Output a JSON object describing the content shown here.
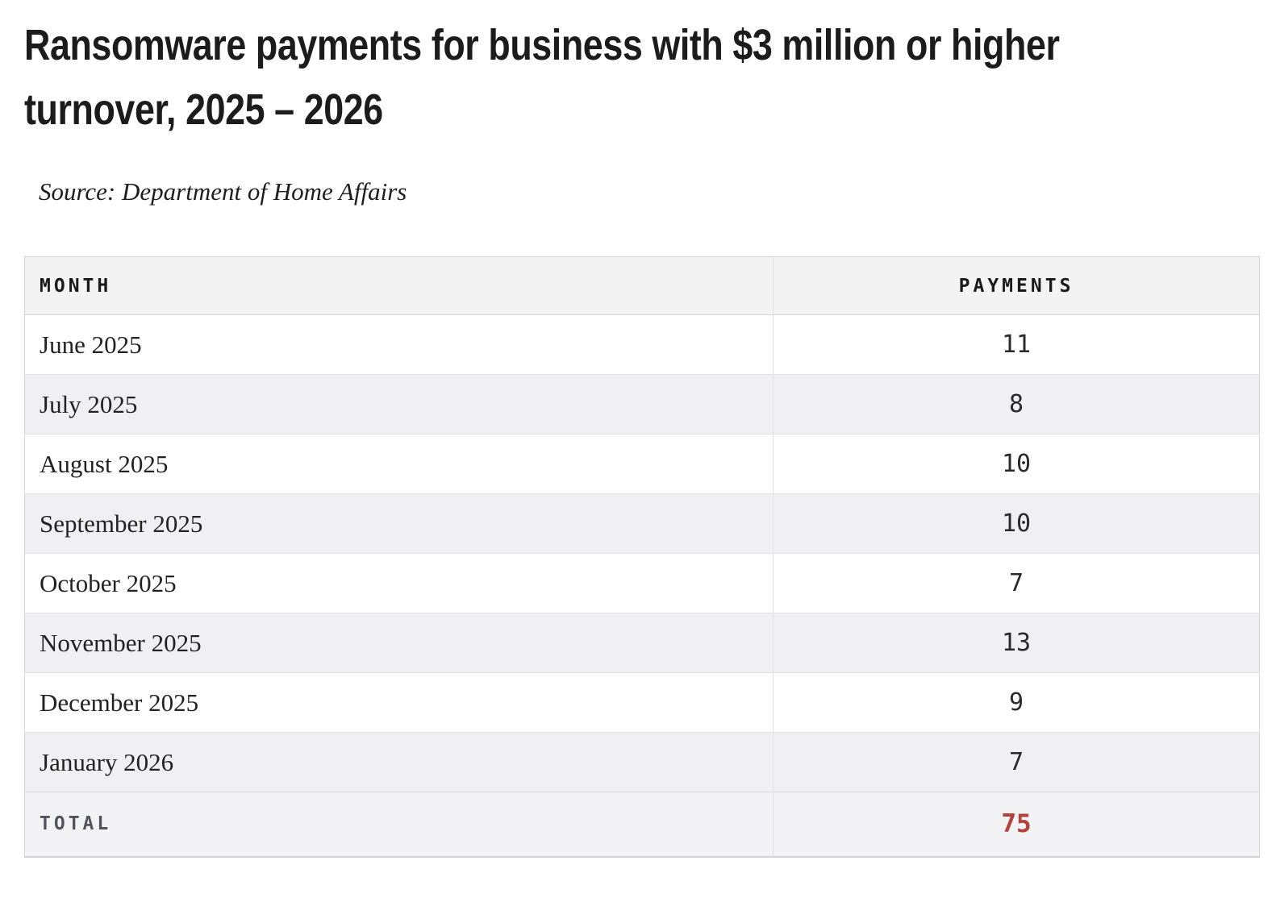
{
  "header": {
    "title": "Ransomware payments for business with $3 million or higher turnover, 2025 – 2026",
    "title_line1": "Ransomware payments for business with $3 million or higher",
    "title_line2": "turnover, 2025 – 2026",
    "source": "Source: Department of Home Affairs"
  },
  "table": {
    "columns": [
      {
        "label": "MONTH"
      },
      {
        "label": "PAYMENTS"
      }
    ],
    "rows": [
      {
        "month": "June 2025",
        "payments": "11"
      },
      {
        "month": "July 2025",
        "payments": "8"
      },
      {
        "month": "August 2025",
        "payments": "10"
      },
      {
        "month": "September 2025",
        "payments": "10"
      },
      {
        "month": "October 2025",
        "payments": "7"
      },
      {
        "month": "November 2025",
        "payments": "13"
      },
      {
        "month": "December 2025",
        "payments": "9"
      },
      {
        "month": "January 2026",
        "payments": "7"
      }
    ],
    "total": {
      "label": "TOTAL",
      "value": "75"
    }
  },
  "colors": {
    "title_text": "#1c1c1c",
    "body_text": "#222222",
    "total_label_text": "#53535f",
    "total_value_text": "#b5413c",
    "header_bg": "#f3f3f3",
    "stripe_bg": "#f0f0f4",
    "total_bg": "#f3f3f5",
    "border": "#d2d2d6"
  },
  "chart_data": {
    "type": "table",
    "title": "Ransomware payments for business with $3 million or higher turnover, 2025 – 2026",
    "source": "Source: Department of Home Affairs",
    "columns": [
      "MONTH",
      "PAYMENTS"
    ],
    "categories": [
      "June 2025",
      "July 2025",
      "August 2025",
      "September 2025",
      "October 2025",
      "November 2025",
      "December 2025",
      "January 2026"
    ],
    "values": [
      11,
      8,
      10,
      10,
      7,
      13,
      9,
      7
    ],
    "total": 75
  }
}
